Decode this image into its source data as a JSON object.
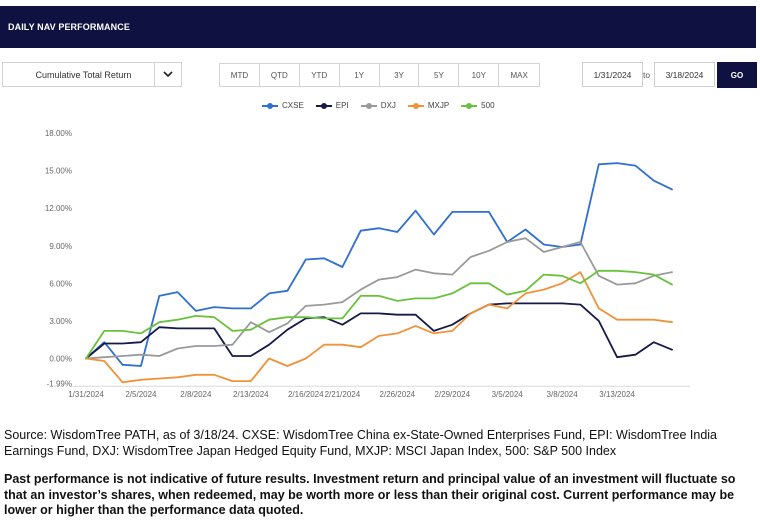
{
  "header": {
    "title": "DAILY NAV PERFORMANCE"
  },
  "controls": {
    "metric_selected": "Cumulative Total Return",
    "periods": [
      "MTD",
      "QTD",
      "YTD",
      "1Y",
      "3Y",
      "5Y",
      "10Y",
      "MAX"
    ],
    "start_date": "1/31/2024",
    "to_label": "to",
    "end_date": "3/18/2024",
    "go_label": "GO"
  },
  "chart_data": {
    "type": "line",
    "legend_position": "top-center",
    "grid": false,
    "ylim": [
      -1.9,
      18.0
    ],
    "y_ticks": [
      "18.00%",
      "15.00%",
      "12.00%",
      "9.00%",
      "6.00%",
      "3.00%",
      "0.00%",
      "-1.99%"
    ],
    "x_ticks": [
      "1/31/2024",
      "2/5/2024",
      "2/8/2024",
      "2/13/2024",
      "2/16/2024",
      "2/21/2024",
      "2/26/2024",
      "2/29/2024",
      "3/5/2024",
      "3/8/2024",
      "3/13/2024"
    ],
    "x_dates": [
      "1/31",
      "2/1",
      "2/2",
      "2/5",
      "2/6",
      "2/7",
      "2/8",
      "2/9",
      "2/12",
      "2/13",
      "2/14",
      "2/15",
      "2/16",
      "2/20",
      "2/21",
      "2/22",
      "2/23",
      "2/26",
      "2/27",
      "2/28",
      "2/29",
      "3/1",
      "3/4",
      "3/5",
      "3/6",
      "3/7",
      "3/8",
      "3/11",
      "3/12",
      "3/13",
      "3/14",
      "3/15",
      "3/18"
    ],
    "series": [
      {
        "name": "CXSE",
        "color": "#2f6fd0",
        "values": [
          0.0,
          1.3,
          -0.5,
          -0.6,
          5.0,
          5.3,
          3.8,
          4.1,
          4.0,
          4.0,
          5.2,
          5.4,
          7.9,
          8.0,
          7.3,
          10.2,
          10.4,
          10.1,
          11.8,
          9.9,
          11.7,
          11.7,
          11.7,
          9.3,
          10.3,
          9.1,
          8.9,
          9.1,
          15.5,
          15.6,
          15.4,
          14.2,
          13.5
        ]
      },
      {
        "name": "EPI",
        "color": "#161a47",
        "values": [
          0.0,
          1.2,
          1.2,
          1.3,
          2.5,
          2.4,
          2.4,
          2.4,
          0.2,
          0.2,
          1.1,
          2.3,
          3.2,
          3.3,
          2.7,
          3.6,
          3.6,
          3.5,
          3.5,
          2.2,
          2.7,
          3.6,
          4.3,
          4.4,
          4.4,
          4.4,
          4.4,
          4.3,
          3.0,
          0.1,
          0.3,
          1.3,
          0.7
        ]
      },
      {
        "name": "DXJ",
        "color": "#9a9a9a",
        "values": [
          0.0,
          0.1,
          0.2,
          0.3,
          0.2,
          0.8,
          1.0,
          1.0,
          1.1,
          2.9,
          2.1,
          2.8,
          4.2,
          4.3,
          4.5,
          5.5,
          6.3,
          6.5,
          7.1,
          6.8,
          6.7,
          8.1,
          8.6,
          9.3,
          9.6,
          8.5,
          8.9,
          9.3,
          6.6,
          5.9,
          6.0,
          6.6,
          6.9
        ]
      },
      {
        "name": "MXJP",
        "color": "#f0923a",
        "values": [
          0.0,
          -0.2,
          -1.9,
          -1.7,
          -1.6,
          -1.5,
          -1.3,
          -1.3,
          -1.8,
          -1.8,
          0.0,
          -0.6,
          0.0,
          1.1,
          1.1,
          0.9,
          1.8,
          2.0,
          2.6,
          2.0,
          2.2,
          3.6,
          4.3,
          4.0,
          5.2,
          5.5,
          6.0,
          6.9,
          4.0,
          3.1,
          3.1,
          3.1,
          2.9
        ]
      },
      {
        "name": "500",
        "color": "#6ac23c",
        "values": [
          0.0,
          2.2,
          2.2,
          2.0,
          2.9,
          3.1,
          3.4,
          3.3,
          2.2,
          2.3,
          3.1,
          3.3,
          3.3,
          3.2,
          3.2,
          5.0,
          5.0,
          4.6,
          4.8,
          4.8,
          5.2,
          6.0,
          6.0,
          5.1,
          5.4,
          6.7,
          6.6,
          6.0,
          7.0,
          7.0,
          6.9,
          6.7,
          5.9
        ]
      }
    ]
  },
  "notes": {
    "source": "Source: WisdomTree PATH, as of 3/18/24. CXSE: WisdomTree China ex-State-Owned Enterprises Fund, EPI: WisdomTree India Earnings Fund, DXJ: WisdomTree Japan Hedged Equity Fund, MXJP: MSCI Japan Index, 500: S&P 500 Index",
    "disclaimer": "Past performance is not indicative of future results. Investment return and principal value of an investment will fluctuate so that an investor’s shares, when redeemed, may be worth more or less than their original cost. Current performance may be lower or higher than the performance data quoted."
  }
}
